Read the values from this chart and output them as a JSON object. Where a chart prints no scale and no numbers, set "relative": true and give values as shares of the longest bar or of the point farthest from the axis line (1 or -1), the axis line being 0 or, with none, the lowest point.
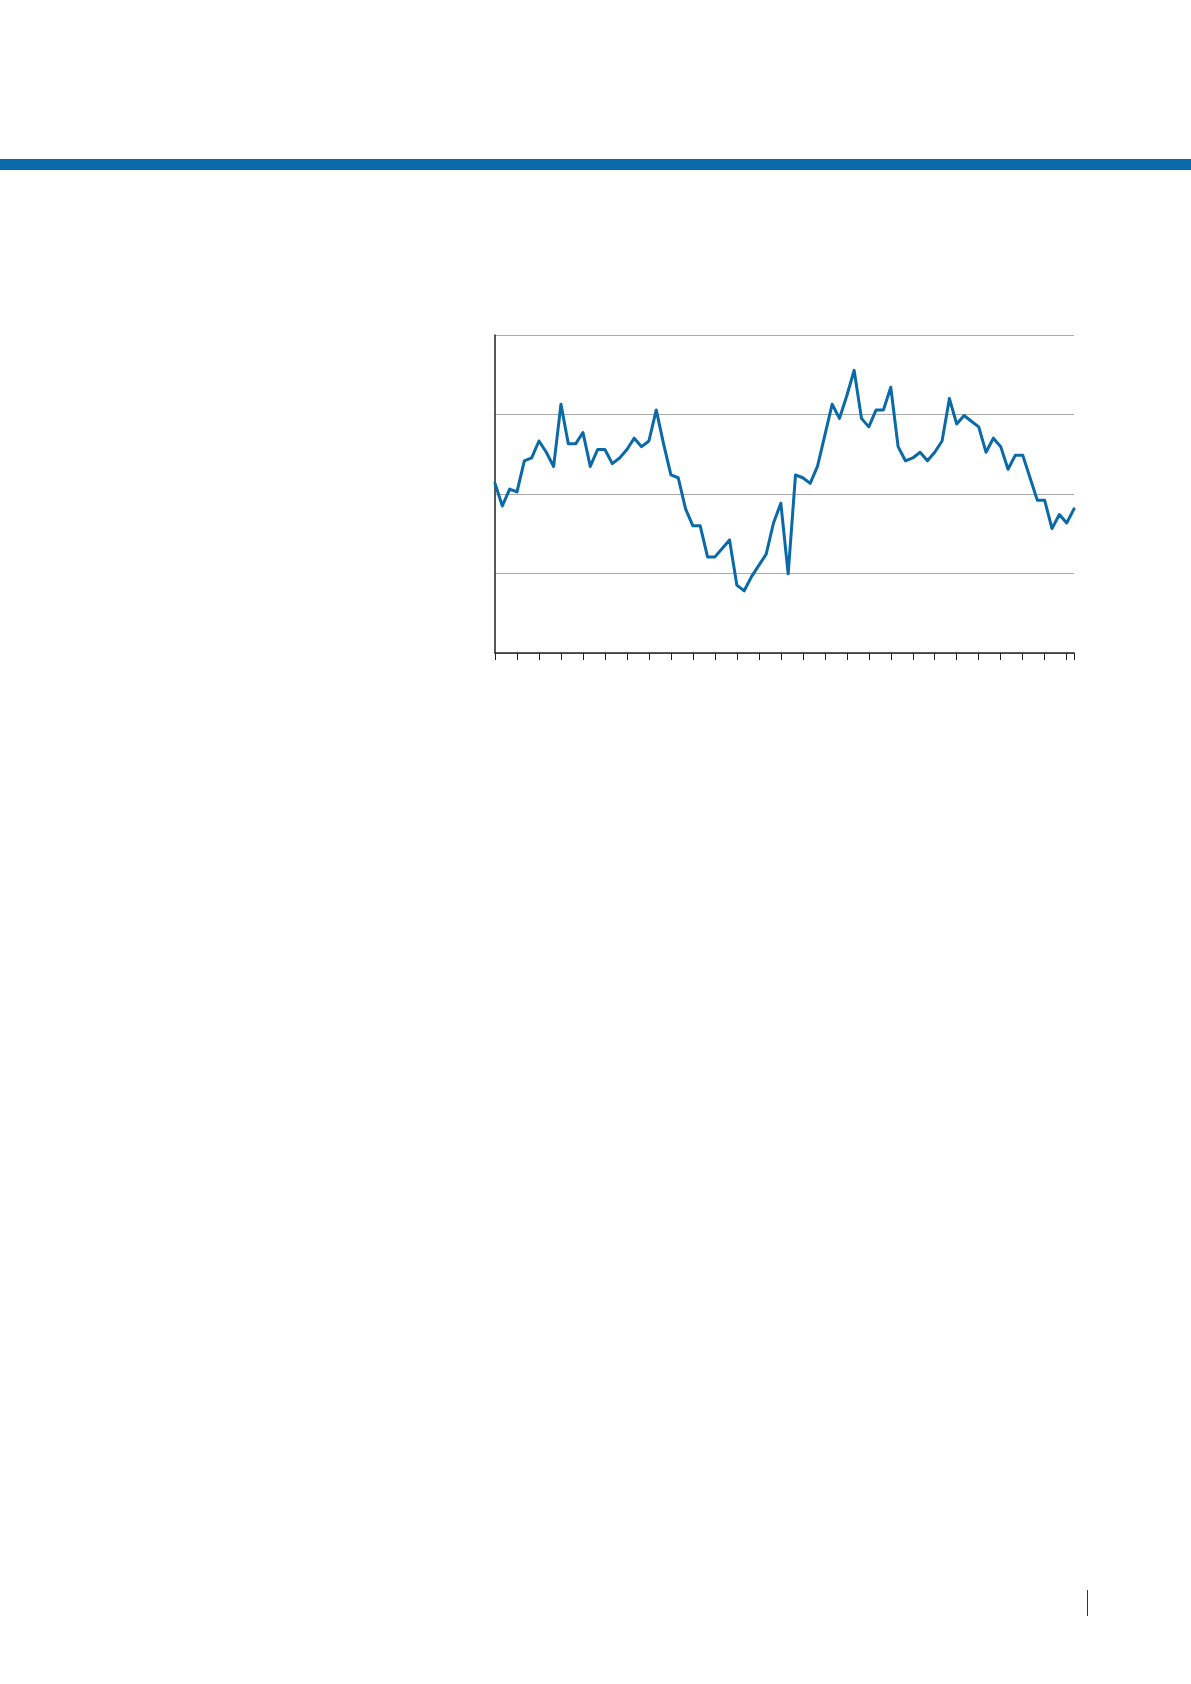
{
  "chart_data": {
    "type": "line",
    "relative": true,
    "grid": "y",
    "marker": "none",
    "line_style": "solid",
    "categories": [
      null,
      null,
      null,
      null,
      null,
      null,
      null,
      null,
      null,
      null,
      null,
      null,
      null,
      null,
      null,
      null,
      null,
      null,
      null,
      null,
      null,
      null,
      null,
      null,
      null,
      null,
      null,
      null,
      null,
      null,
      null,
      null,
      null,
      null,
      null,
      null,
      null,
      null,
      null,
      null,
      null,
      null,
      null,
      null,
      null,
      null,
      null,
      null,
      null,
      null,
      null,
      null,
      null,
      null,
      null,
      null,
      null,
      null,
      null,
      null,
      null,
      null,
      null,
      null,
      null,
      null,
      null,
      null,
      null,
      null,
      null,
      null,
      null,
      null,
      null,
      null,
      null,
      null,
      null,
      null
    ],
    "series": [
      {
        "color": "#0a69a8",
        "values": [
          0.6,
          0.52,
          0.58,
          0.57,
          0.68,
          0.69,
          0.75,
          0.71,
          0.66,
          0.88,
          0.74,
          0.74,
          0.78,
          0.66,
          0.72,
          0.72,
          0.67,
          0.69,
          0.72,
          0.76,
          0.73,
          0.75,
          0.86,
          0.74,
          0.63,
          0.62,
          0.51,
          0.45,
          0.45,
          0.34,
          0.34,
          0.37,
          0.4,
          0.24,
          0.22,
          0.27,
          0.31,
          0.35,
          0.46,
          0.53,
          0.28,
          0.63,
          0.62,
          0.6,
          0.66,
          0.77,
          0.88,
          0.83,
          0.91,
          1,
          0.83,
          0.8,
          0.86,
          0.86,
          0.94,
          0.73,
          0.68,
          0.69,
          0.71,
          0.68,
          0.71,
          0.75,
          0.9,
          0.81,
          0.84,
          0.82,
          0.8,
          0.71,
          0.76,
          0.73,
          0.65,
          0.7,
          0.7,
          0.62,
          0.54,
          0.54,
          0.44,
          0.49,
          0.46,
          0.51
        ]
      }
    ]
  }
}
